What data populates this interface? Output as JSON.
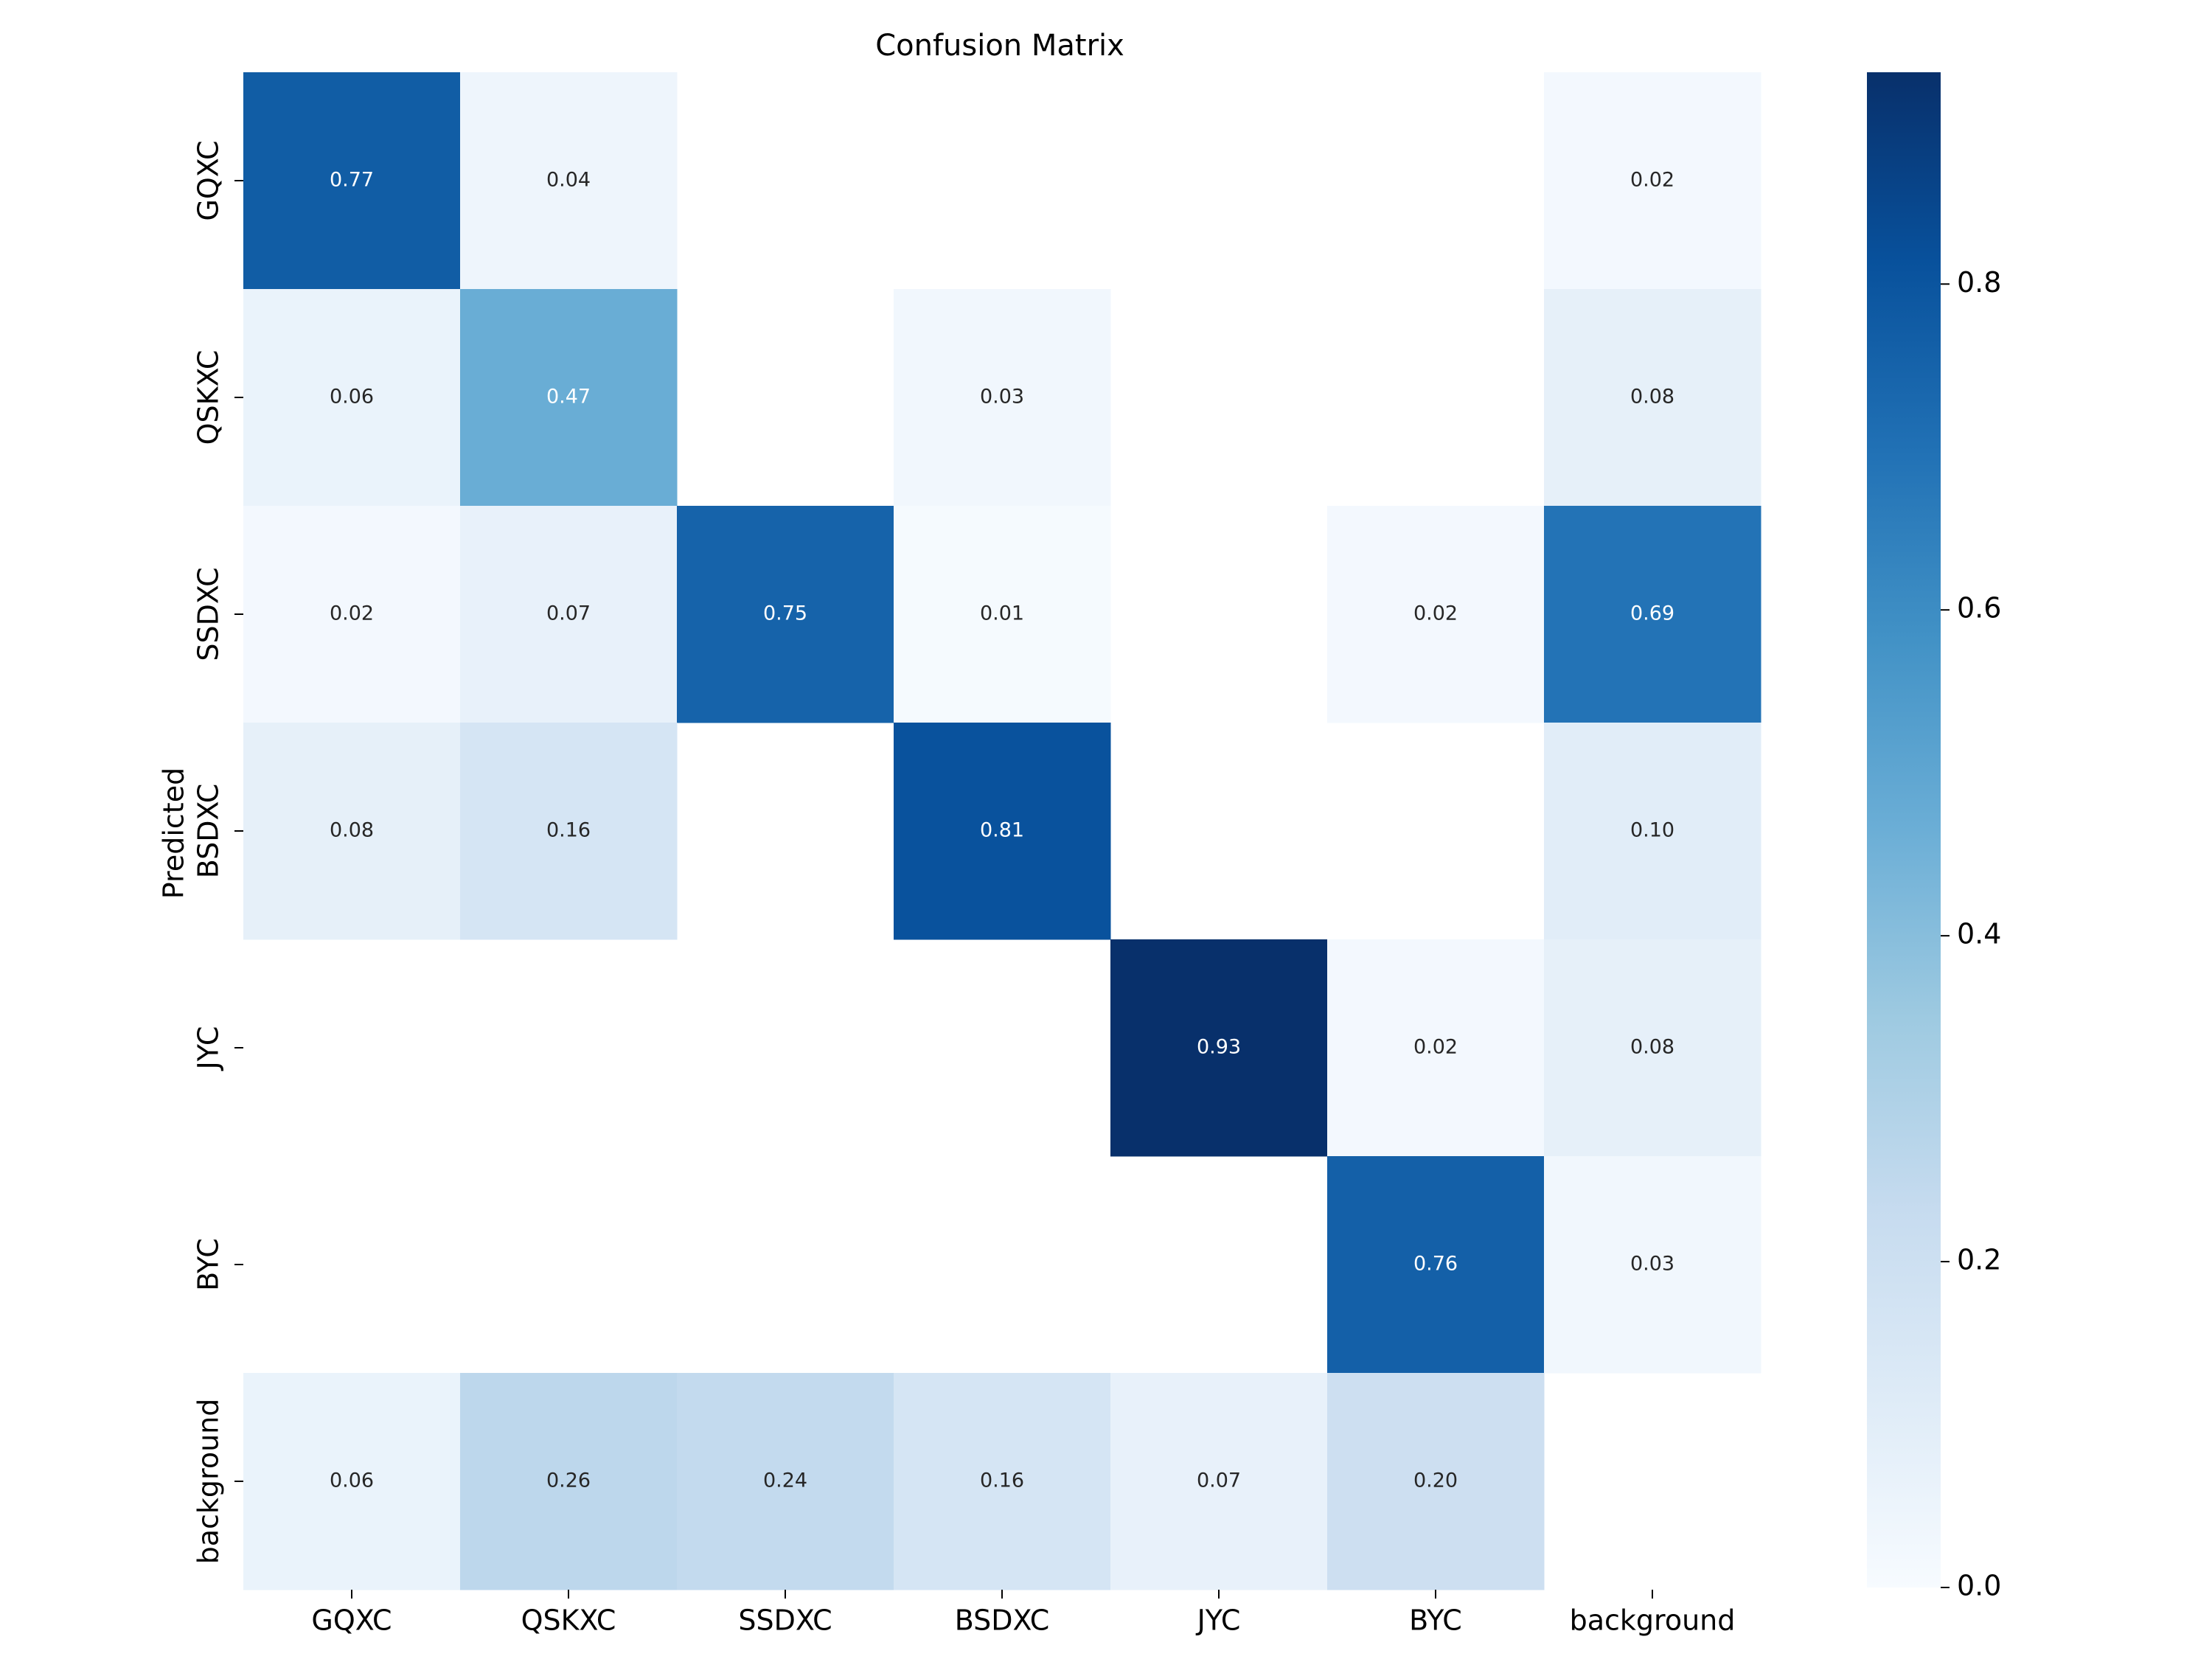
{
  "chart_data": {
    "type": "heatmap",
    "title": "Confusion Matrix",
    "ylabel": "Predicted",
    "xlabel": "",
    "x_categories": [
      "GQXC",
      "QSKXC",
      "SSDXC",
      "BSDXC",
      "JYC",
      "BYC",
      "background"
    ],
    "y_categories": [
      "GQXC",
      "QSKXC",
      "SSDXC",
      "BSDXC",
      "JYC",
      "BYC",
      "background"
    ],
    "values": [
      [
        0.77,
        0.04,
        null,
        null,
        null,
        null,
        0.02
      ],
      [
        0.06,
        0.47,
        null,
        0.03,
        null,
        null,
        0.08
      ],
      [
        0.02,
        0.07,
        0.75,
        0.01,
        null,
        0.02,
        0.69
      ],
      [
        0.08,
        0.16,
        null,
        0.81,
        null,
        null,
        0.1
      ],
      [
        null,
        null,
        null,
        null,
        0.93,
        0.02,
        0.08
      ],
      [
        null,
        null,
        null,
        null,
        null,
        0.76,
        0.03
      ],
      [
        0.06,
        0.26,
        0.24,
        0.16,
        0.07,
        0.2,
        null
      ]
    ],
    "colorbar": {
      "range": [
        0.0,
        0.93
      ],
      "ticks": [
        0.0,
        0.2,
        0.4,
        0.6,
        0.8
      ],
      "tick_labels": [
        "0.0",
        "0.2",
        "0.4",
        "0.6",
        "0.8"
      ],
      "colormap": "Blues"
    }
  }
}
